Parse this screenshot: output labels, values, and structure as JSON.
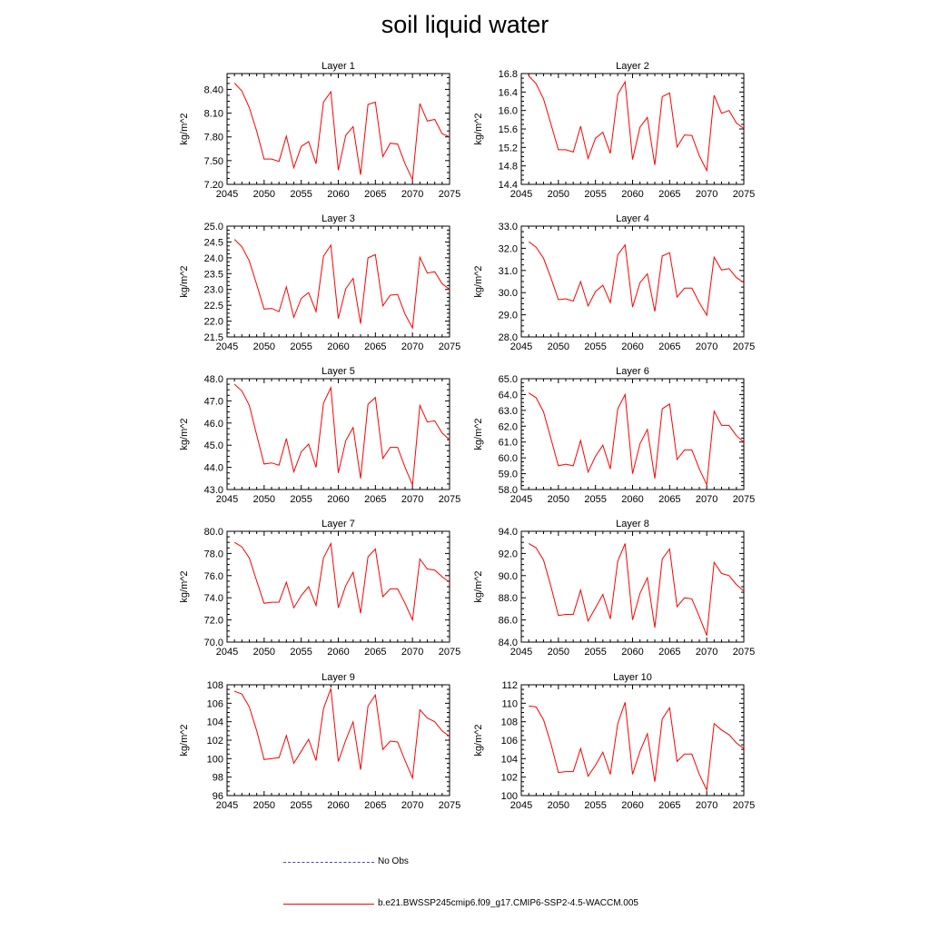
{
  "title": "soil liquid water",
  "legend": {
    "obs_label": "No Obs",
    "obs_color": "#4a4aa8",
    "model_label": "b.e21.BWSSP245cmip6.f09_g17.CMIP6-SSP2-4.5-WACCM.005",
    "model_color": "#ff0000"
  },
  "chart_data": [
    {
      "type": "line",
      "title": "Layer 1",
      "ylabel": "kg/m^2",
      "xlim": [
        2045,
        2075
      ],
      "xticks": [
        "2045",
        "2050",
        "2055",
        "2060",
        "2065",
        "2070",
        "2075"
      ],
      "ylim": [
        7.2,
        8.6
      ],
      "yticks": [
        "7.20",
        "7.50",
        "7.80",
        "8.10",
        "8.40"
      ],
      "series": [
        {
          "color": "#ff0000",
          "x": [
            2046,
            2047,
            2048,
            2049,
            2050,
            2051,
            2052,
            2053,
            2054,
            2055,
            2056,
            2057,
            2058,
            2059,
            2060,
            2061,
            2062,
            2063,
            2064,
            2065,
            2066,
            2067,
            2068,
            2069,
            2070,
            2071,
            2072,
            2073,
            2074,
            2075
          ],
          "values": [
            8.48,
            8.38,
            8.17,
            7.87,
            7.52,
            7.52,
            7.49,
            7.81,
            7.41,
            7.68,
            7.74,
            7.46,
            8.24,
            8.37,
            7.38,
            7.82,
            7.93,
            7.32,
            8.21,
            8.24,
            7.55,
            7.72,
            7.71,
            7.46,
            7.26,
            8.22,
            8.0,
            8.02,
            7.84,
            7.8
          ]
        }
      ]
    },
    {
      "type": "line",
      "title": "Layer 2",
      "ylabel": "kg/m^2",
      "xlim": [
        2045,
        2075
      ],
      "xticks": [
        "2045",
        "2050",
        "2055",
        "2060",
        "2065",
        "2070",
        "2075"
      ],
      "ylim": [
        14.4,
        16.8
      ],
      "yticks": [
        "14.4",
        "14.8",
        "15.2",
        "15.6",
        "16.0",
        "16.4",
        "16.8"
      ],
      "series": [
        {
          "color": "#ff0000",
          "x": [
            2046,
            2047,
            2048,
            2049,
            2050,
            2051,
            2052,
            2053,
            2054,
            2055,
            2056,
            2057,
            2058,
            2059,
            2060,
            2061,
            2062,
            2063,
            2064,
            2065,
            2066,
            2067,
            2068,
            2069,
            2070,
            2071,
            2072,
            2073,
            2074,
            2075
          ],
          "values": [
            16.75,
            16.58,
            16.25,
            15.7,
            15.15,
            15.15,
            15.1,
            15.66,
            14.96,
            15.4,
            15.53,
            15.07,
            16.35,
            16.62,
            14.94,
            15.64,
            15.85,
            14.82,
            16.3,
            16.38,
            15.21,
            15.47,
            15.46,
            15.02,
            14.7,
            16.33,
            15.94,
            16.0,
            15.73,
            15.61
          ]
        }
      ]
    },
    {
      "type": "line",
      "title": "Layer 3",
      "ylabel": "kg/m^2",
      "xlim": [
        2045,
        2075
      ],
      "xticks": [
        "2045",
        "2050",
        "2055",
        "2060",
        "2065",
        "2070",
        "2075"
      ],
      "ylim": [
        21.5,
        25.0
      ],
      "yticks": [
        "21.5",
        "22.0",
        "22.5",
        "23.0",
        "23.5",
        "24.0",
        "24.5",
        "25.0"
      ],
      "series": [
        {
          "color": "#ff0000",
          "x": [
            2046,
            2047,
            2048,
            2049,
            2050,
            2051,
            2052,
            2053,
            2054,
            2055,
            2056,
            2057,
            2058,
            2059,
            2060,
            2061,
            2062,
            2063,
            2064,
            2065,
            2066,
            2067,
            2068,
            2069,
            2070,
            2071,
            2072,
            2073,
            2074,
            2075
          ],
          "values": [
            24.58,
            24.35,
            23.9,
            23.15,
            22.38,
            22.4,
            22.3,
            23.08,
            22.12,
            22.72,
            22.9,
            22.3,
            24.05,
            24.4,
            22.08,
            23.02,
            23.35,
            21.92,
            24.0,
            24.1,
            22.48,
            22.82,
            22.84,
            22.22,
            21.78,
            24.02,
            23.52,
            23.56,
            23.18,
            23.0
          ]
        }
      ]
    },
    {
      "type": "line",
      "title": "Layer 4",
      "ylabel": "kg/m^2",
      "xlim": [
        2045,
        2075
      ],
      "xticks": [
        "2045",
        "2050",
        "2055",
        "2060",
        "2065",
        "2070",
        "2075"
      ],
      "ylim": [
        28.0,
        33.0
      ],
      "yticks": [
        "28.0",
        "29.0",
        "30.0",
        "31.0",
        "32.0",
        "33.0"
      ],
      "series": [
        {
          "color": "#ff0000",
          "x": [
            2046,
            2047,
            2048,
            2049,
            2050,
            2051,
            2052,
            2053,
            2054,
            2055,
            2056,
            2057,
            2058,
            2059,
            2060,
            2061,
            2062,
            2063,
            2064,
            2065,
            2066,
            2067,
            2068,
            2069,
            2070,
            2071,
            2072,
            2073,
            2074,
            2075
          ],
          "values": [
            32.3,
            32.05,
            31.55,
            30.65,
            29.68,
            29.72,
            29.62,
            30.5,
            29.4,
            30.05,
            30.33,
            29.55,
            31.7,
            32.15,
            29.35,
            30.45,
            30.85,
            29.15,
            31.65,
            31.8,
            29.8,
            30.2,
            30.2,
            29.55,
            28.98,
            31.6,
            31.02,
            31.08,
            30.68,
            30.45
          ]
        }
      ]
    },
    {
      "type": "line",
      "title": "Layer 5",
      "ylabel": "kg/m^2",
      "xlim": [
        2045,
        2075
      ],
      "xticks": [
        "2045",
        "2050",
        "2055",
        "2060",
        "2065",
        "2070",
        "2075"
      ],
      "ylim": [
        43.0,
        48.0
      ],
      "yticks": [
        "43.0",
        "44.0",
        "45.0",
        "46.0",
        "47.0",
        "48.0"
      ],
      "series": [
        {
          "color": "#ff0000",
          "x": [
            2046,
            2047,
            2048,
            2049,
            2050,
            2051,
            2052,
            2053,
            2054,
            2055,
            2056,
            2057,
            2058,
            2059,
            2060,
            2061,
            2062,
            2063,
            2064,
            2065,
            2066,
            2067,
            2068,
            2069,
            2070,
            2071,
            2072,
            2073,
            2074,
            2075
          ],
          "values": [
            47.75,
            47.45,
            46.8,
            45.45,
            44.15,
            44.2,
            44.1,
            45.3,
            43.8,
            44.7,
            45.05,
            44.0,
            46.9,
            47.6,
            43.75,
            45.2,
            45.8,
            43.5,
            46.85,
            47.15,
            44.4,
            44.9,
            44.9,
            44.0,
            43.2,
            46.8,
            46.05,
            46.1,
            45.55,
            45.25
          ]
        }
      ]
    },
    {
      "type": "line",
      "title": "Layer 6",
      "ylabel": "kg/m^2",
      "xlim": [
        2045,
        2075
      ],
      "xticks": [
        "2045",
        "2050",
        "2055",
        "2060",
        "2065",
        "2070",
        "2075"
      ],
      "ylim": [
        58.0,
        65.0
      ],
      "yticks": [
        "58.0",
        "59.0",
        "60.0",
        "61.0",
        "62.0",
        "63.0",
        "64.0",
        "65.0"
      ],
      "series": [
        {
          "color": "#ff0000",
          "x": [
            2046,
            2047,
            2048,
            2049,
            2050,
            2051,
            2052,
            2053,
            2054,
            2055,
            2056,
            2057,
            2058,
            2059,
            2060,
            2061,
            2062,
            2063,
            2064,
            2065,
            2066,
            2067,
            2068,
            2069,
            2070,
            2071,
            2072,
            2073,
            2074,
            2075
          ],
          "values": [
            64.1,
            63.8,
            62.9,
            61.2,
            59.5,
            59.6,
            59.5,
            61.1,
            59.1,
            60.1,
            60.8,
            59.3,
            63.1,
            64.0,
            59.0,
            60.9,
            61.8,
            58.7,
            63.1,
            63.4,
            59.9,
            60.5,
            60.5,
            59.3,
            58.3,
            62.95,
            62.05,
            62.05,
            61.4,
            61.0
          ]
        }
      ]
    },
    {
      "type": "line",
      "title": "Layer 7",
      "ylabel": "kg/m^2",
      "xlim": [
        2045,
        2075
      ],
      "xticks": [
        "2045",
        "2050",
        "2055",
        "2060",
        "2065",
        "2070",
        "2075"
      ],
      "ylim": [
        70.0,
        80.0
      ],
      "yticks": [
        "70.0",
        "72.0",
        "74.0",
        "76.0",
        "78.0",
        "80.0"
      ],
      "series": [
        {
          "color": "#ff0000",
          "x": [
            2046,
            2047,
            2048,
            2049,
            2050,
            2051,
            2052,
            2053,
            2054,
            2055,
            2056,
            2057,
            2058,
            2059,
            2060,
            2061,
            2062,
            2063,
            2064,
            2065,
            2066,
            2067,
            2068,
            2069,
            2070,
            2071,
            2072,
            2073,
            2074,
            2075
          ],
          "values": [
            79.0,
            78.6,
            77.6,
            75.5,
            73.5,
            73.6,
            73.6,
            75.4,
            73.1,
            74.2,
            75.0,
            73.3,
            77.6,
            78.9,
            73.1,
            75.1,
            76.3,
            72.6,
            77.7,
            78.4,
            74.1,
            74.8,
            74.8,
            73.5,
            72.0,
            77.5,
            76.6,
            76.5,
            75.9,
            75.4
          ]
        }
      ]
    },
    {
      "type": "line",
      "title": "Layer 8",
      "ylabel": "kg/m^2",
      "xlim": [
        2045,
        2075
      ],
      "xticks": [
        "2045",
        "2050",
        "2055",
        "2060",
        "2065",
        "2070",
        "2075"
      ],
      "ylim": [
        84.0,
        94.0
      ],
      "yticks": [
        "84.0",
        "86.0",
        "88.0",
        "90.0",
        "92.0",
        "94.0"
      ],
      "series": [
        {
          "color": "#ff0000",
          "x": [
            2046,
            2047,
            2048,
            2049,
            2050,
            2051,
            2052,
            2053,
            2054,
            2055,
            2056,
            2057,
            2058,
            2059,
            2060,
            2061,
            2062,
            2063,
            2064,
            2065,
            2066,
            2067,
            2068,
            2069,
            2070,
            2071,
            2072,
            2073,
            2074,
            2075
          ],
          "values": [
            92.9,
            92.5,
            91.4,
            89.0,
            86.4,
            86.5,
            86.5,
            88.7,
            85.9,
            87.1,
            88.3,
            86.1,
            91.3,
            92.9,
            86.0,
            88.4,
            89.8,
            85.3,
            91.5,
            92.4,
            87.2,
            88.0,
            87.9,
            86.3,
            84.6,
            91.2,
            90.2,
            90.0,
            89.2,
            88.6
          ]
        }
      ]
    },
    {
      "type": "line",
      "title": "Layer 9",
      "ylabel": "kg/m^2",
      "xlim": [
        2045,
        2075
      ],
      "xticks": [
        "2045",
        "2050",
        "2055",
        "2060",
        "2065",
        "2070",
        "2075"
      ],
      "ylim": [
        96,
        108
      ],
      "yticks": [
        "96",
        "98",
        "100",
        "102",
        "104",
        "106",
        "108"
      ],
      "series": [
        {
          "color": "#ff0000",
          "x": [
            2046,
            2047,
            2048,
            2049,
            2050,
            2051,
            2052,
            2053,
            2054,
            2055,
            2056,
            2057,
            2058,
            2059,
            2060,
            2061,
            2062,
            2063,
            2064,
            2065,
            2066,
            2067,
            2068,
            2069,
            2070,
            2071,
            2072,
            2073,
            2074,
            2075
          ],
          "values": [
            107.3,
            107.0,
            105.6,
            103.0,
            99.9,
            100.0,
            100.1,
            102.5,
            99.5,
            100.8,
            102.1,
            99.8,
            105.4,
            107.6,
            99.7,
            102.0,
            104.0,
            98.8,
            105.7,
            106.9,
            101.0,
            101.9,
            101.8,
            99.8,
            97.9,
            105.3,
            104.4,
            104.0,
            103.0,
            102.4
          ]
        }
      ]
    },
    {
      "type": "line",
      "title": "Layer 10",
      "ylabel": "kg/m^2",
      "xlim": [
        2045,
        2075
      ],
      "xticks": [
        "2045",
        "2050",
        "2055",
        "2060",
        "2065",
        "2070",
        "2075"
      ],
      "ylim": [
        100,
        112
      ],
      "yticks": [
        "100",
        "102",
        "104",
        "106",
        "108",
        "110",
        "112"
      ],
      "series": [
        {
          "color": "#ff0000",
          "x": [
            2046,
            2047,
            2048,
            2049,
            2050,
            2051,
            2052,
            2053,
            2054,
            2055,
            2056,
            2057,
            2058,
            2059,
            2060,
            2061,
            2062,
            2063,
            2064,
            2065,
            2066,
            2067,
            2068,
            2069,
            2070,
            2071,
            2072,
            2073,
            2074,
            2075
          ],
          "values": [
            109.7,
            109.6,
            108.2,
            105.6,
            102.5,
            102.6,
            102.6,
            105.1,
            102.1,
            103.3,
            104.7,
            102.3,
            107.8,
            110.1,
            102.3,
            104.8,
            106.7,
            101.5,
            108.3,
            109.5,
            103.7,
            104.5,
            104.5,
            102.3,
            100.6,
            107.8,
            107.1,
            106.6,
            105.7,
            105.1
          ]
        }
      ]
    }
  ]
}
